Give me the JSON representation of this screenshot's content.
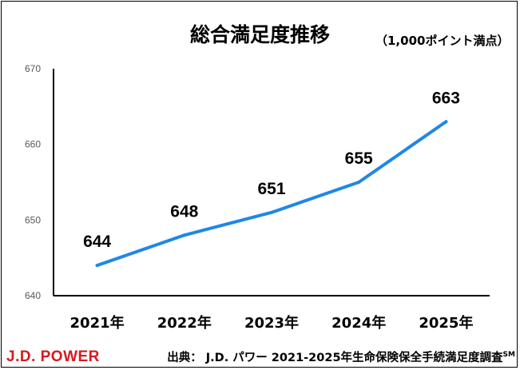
{
  "chart_data": {
    "type": "line",
    "title": "総合満足度推移",
    "unit_note": "（1,000ポイント満点）",
    "categories": [
      "2021年",
      "2022年",
      "2023年",
      "2024年",
      "2025年"
    ],
    "series": [
      {
        "values": [
          644,
          648,
          651,
          655,
          663
        ]
      }
    ],
    "ylim": [
      640,
      670
    ],
    "yticks": [
      640,
      650,
      660,
      670
    ],
    "grid": false,
    "line_color": "#1e88e5"
  },
  "footer": {
    "logo": "J.D. POWER",
    "source": "出典： J.D. パワー 2021-2025年生命保険保全手続満足度調査",
    "source_mark": "SM",
    "logo_color": "#d71920"
  }
}
